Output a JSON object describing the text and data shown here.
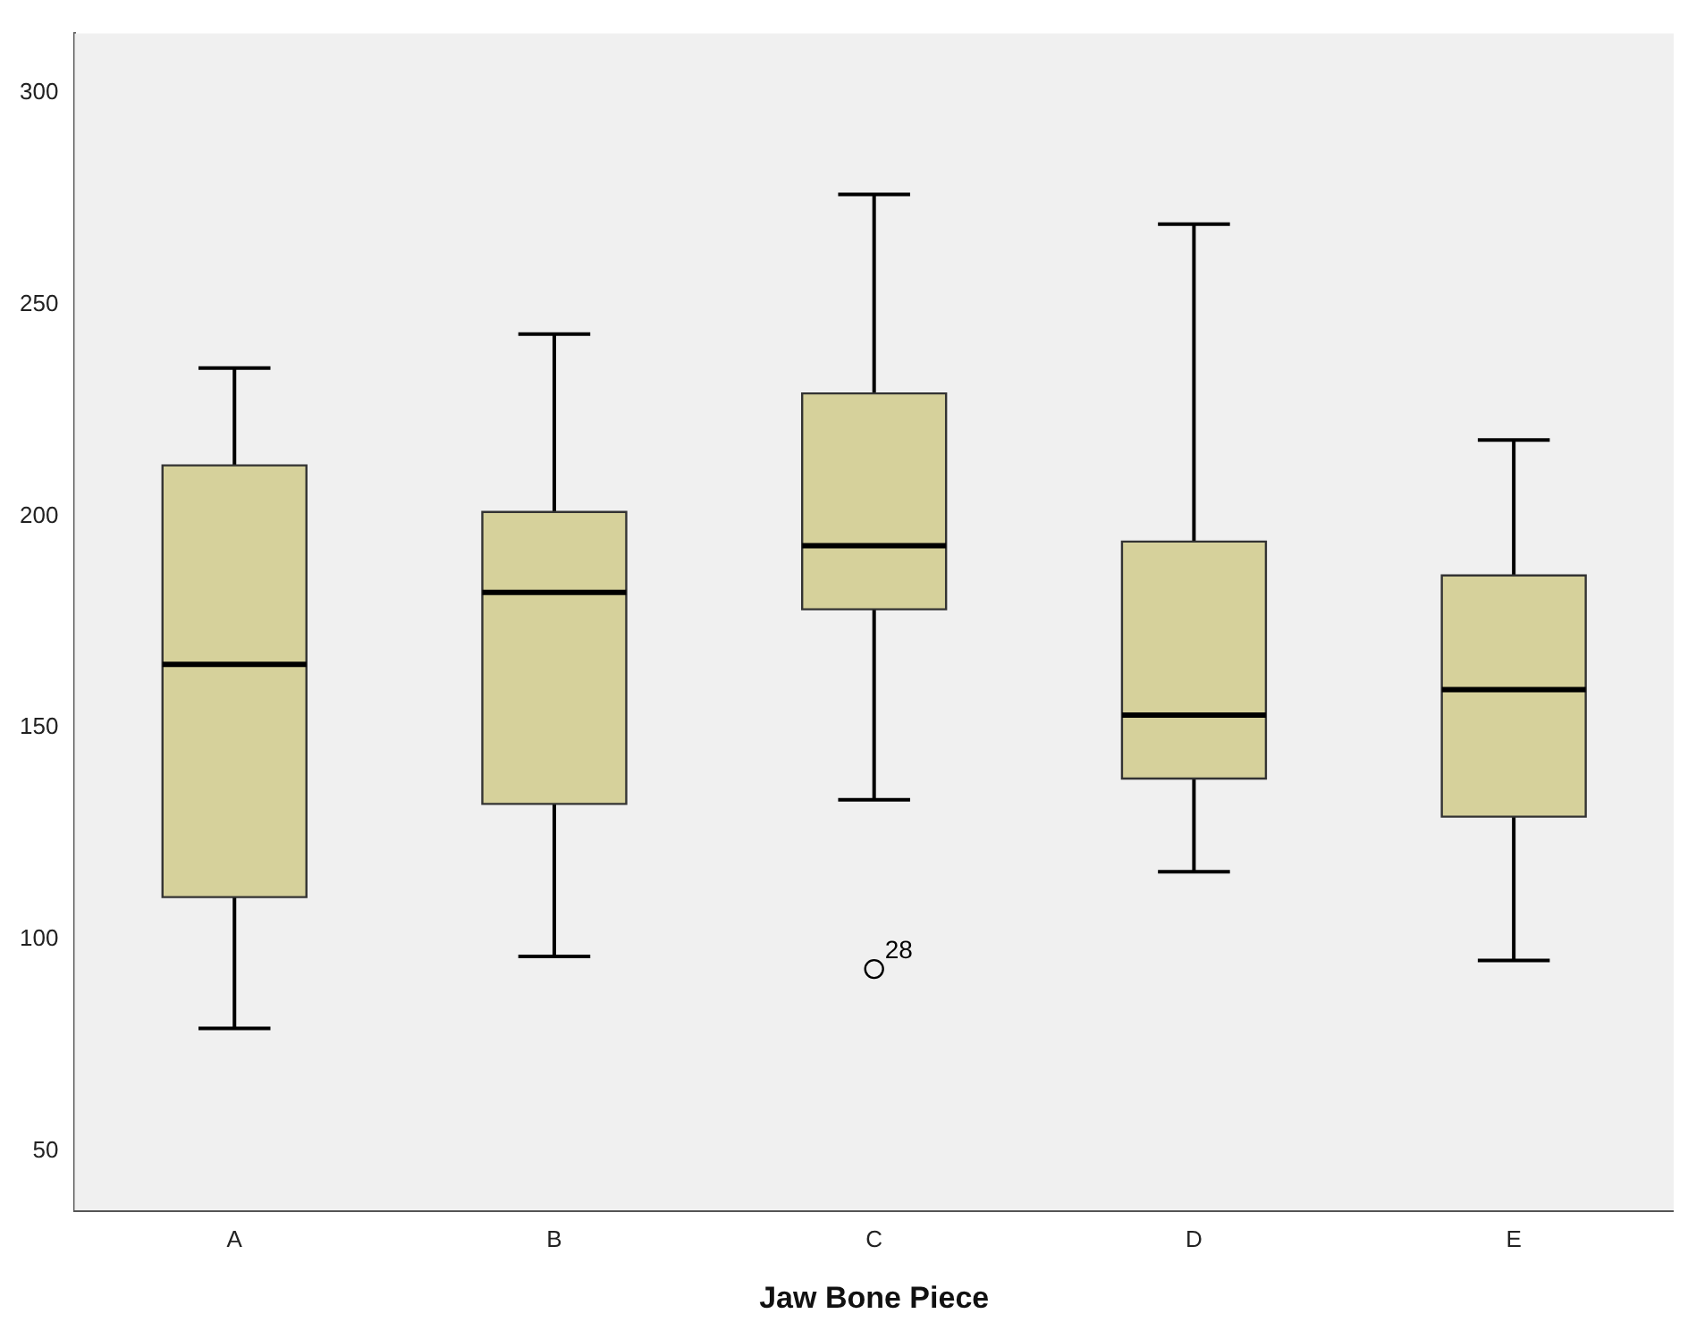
{
  "chart_data": {
    "type": "box",
    "xlabel": "Jaw Bone Piece",
    "categories": [
      "A",
      "B",
      "C",
      "D",
      "E"
    ],
    "color": "#d6d19b",
    "boxes": [
      {
        "low": 79,
        "q1": 110,
        "median": 165,
        "q3": 212,
        "high": 235
      },
      {
        "low": 96,
        "q1": 132,
        "median": 182,
        "q3": 201,
        "high": 243
      },
      {
        "low": 133,
        "q1": 178,
        "median": 193,
        "q3": 229,
        "high": 276,
        "outliers": [
          93
        ]
      },
      {
        "low": 116,
        "q1": 138,
        "median": 153,
        "q3": 194,
        "high": 269
      },
      {
        "low": 95,
        "q1": 129,
        "median": 159,
        "q3": 186,
        "high": 218
      }
    ],
    "annotations": [
      "28"
    ],
    "ylim": [
      36,
      314
    ],
    "yticks": [
      50,
      100,
      150,
      200,
      250,
      300
    ],
    "grid": false,
    "legend": false
  }
}
